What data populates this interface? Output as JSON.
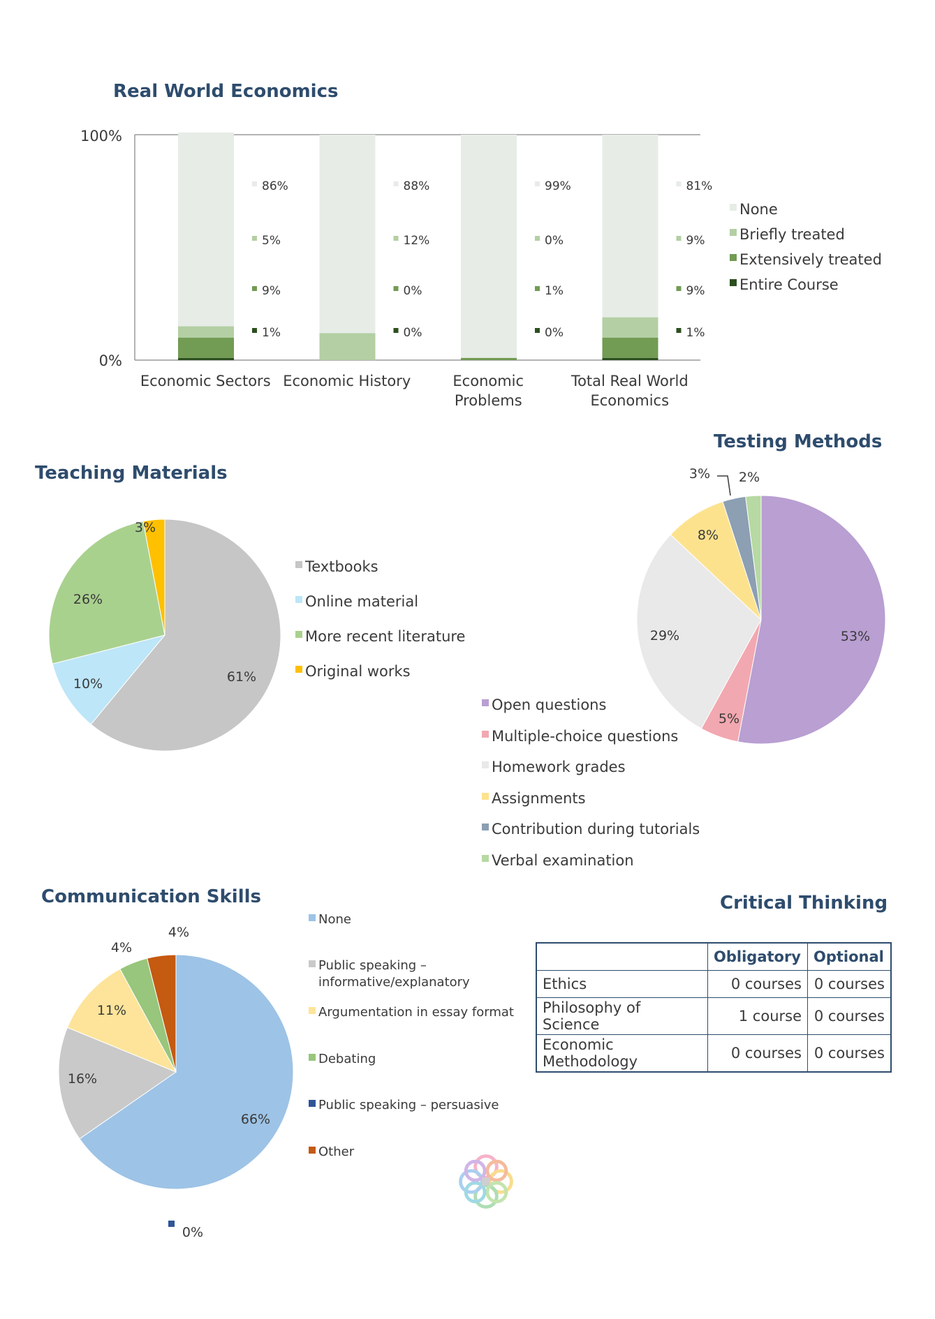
{
  "chart_data": [
    {
      "type": "bar",
      "stacked": true,
      "title": "Real World Economics",
      "categories": [
        "Economic Sectors",
        "Economic History",
        "Economic Problems",
        "Total Real World Economics"
      ],
      "category_lines": [
        [
          "Economic Sectors"
        ],
        [
          "Economic History"
        ],
        [
          "Economic",
          "Problems"
        ],
        [
          "Total Real World",
          "Economics"
        ]
      ],
      "series": [
        {
          "name": "None",
          "values": [
            86,
            88,
            99,
            81
          ],
          "color": "#e7ece7"
        },
        {
          "name": "Briefly treated",
          "values": [
            5,
            12,
            0,
            9
          ],
          "color": "#b3cfa3"
        },
        {
          "name": "Extensively treated",
          "values": [
            9,
            0,
            1,
            9
          ],
          "color": "#729b53"
        },
        {
          "name": "Entire Course",
          "values": [
            1,
            0,
            0,
            1
          ],
          "color": "#2c4f1f"
        }
      ],
      "labels": [
        [
          "86%",
          "5%",
          "9%",
          "1%"
        ],
        [
          "88%",
          "12%",
          "0%",
          "0%"
        ],
        [
          "99%",
          "0%",
          "1%",
          "0%"
        ],
        [
          "81%",
          "9%",
          "9%",
          "1%"
        ]
      ],
      "yticks": [
        "0%",
        "100%"
      ],
      "ylim": [
        0,
        100
      ],
      "legend_position": "right"
    },
    {
      "type": "pie",
      "title": "Teaching Materials",
      "slices": [
        {
          "name": "Textbooks",
          "value": 61,
          "label": "61%",
          "color": "#c6c6c6"
        },
        {
          "name": "Online material",
          "value": 10,
          "label": "10%",
          "color": "#bde6f8"
        },
        {
          "name": "More recent literature",
          "value": 26,
          "label": "26%",
          "color": "#a9d18e"
        },
        {
          "name": "Original works",
          "value": 3,
          "label": "3%",
          "color": "#ffc000"
        }
      ],
      "legend_position": "right"
    },
    {
      "type": "pie",
      "title": "Testing Methods",
      "slices": [
        {
          "name": "Open questions",
          "value": 53,
          "label": "53%",
          "color": "#b99fd2"
        },
        {
          "name": "Multiple-choice questions",
          "value": 5,
          "label": "5%",
          "color": "#f2a8b0"
        },
        {
          "name": "Homework grades",
          "value": 29,
          "label": "29%",
          "color": "#e9e9e9"
        },
        {
          "name": "Assignments",
          "value": 8,
          "label": "8%",
          "color": "#fde28e"
        },
        {
          "name": "Contribution during tutorials",
          "value": 3,
          "label": "3%",
          "color": "#8c9fb3"
        },
        {
          "name": "Verbal examination",
          "value": 2,
          "label": "2%",
          "color": "#b7d9a3"
        }
      ],
      "legend_position": "bottom-left"
    },
    {
      "type": "pie",
      "title": "Communication Skills",
      "slices": [
        {
          "name": "None",
          "value": 66,
          "label": "66%",
          "color": "#9dc3e6"
        },
        {
          "name": "Public speaking – informative/explanatory",
          "value": 16,
          "label": "16%",
          "color": "#c9c9c9"
        },
        {
          "name": "Argumentation in essay format",
          "value": 11,
          "label": "11%",
          "color": "#fde49a"
        },
        {
          "name": "Debating",
          "value": 4,
          "label": "4%",
          "color": "#98c67c"
        },
        {
          "name": "Public speaking – persuasive",
          "value": 0,
          "label": "0%",
          "color": "#2f5597"
        },
        {
          "name": "Other",
          "value": 4,
          "label": "4%",
          "color": "#c55a11"
        }
      ],
      "legend_position": "right"
    },
    {
      "type": "table",
      "title": "Critical Thinking",
      "columns": [
        "",
        "Obligatory",
        "Optional"
      ],
      "rows": [
        [
          "Ethics",
          "0 courses",
          "0 courses"
        ],
        [
          "Philosophy of Science",
          "1 course",
          "0 courses"
        ],
        [
          "Economic Methodology",
          "0 courses",
          "0 courses"
        ]
      ]
    }
  ],
  "critical_table": {
    "head": {
      "obligatory": "Obligatory",
      "optional": "Optional"
    },
    "rows": [
      {
        "topic": "Ethics",
        "obligatory": "0 courses",
        "optional": "0 courses"
      },
      {
        "topic": "Philosophy of Science",
        "obligatory": "1 course",
        "optional": "0 courses"
      },
      {
        "topic": "Economic Methodology",
        "obligatory": "0 courses",
        "optional": "0 courses"
      }
    ]
  }
}
